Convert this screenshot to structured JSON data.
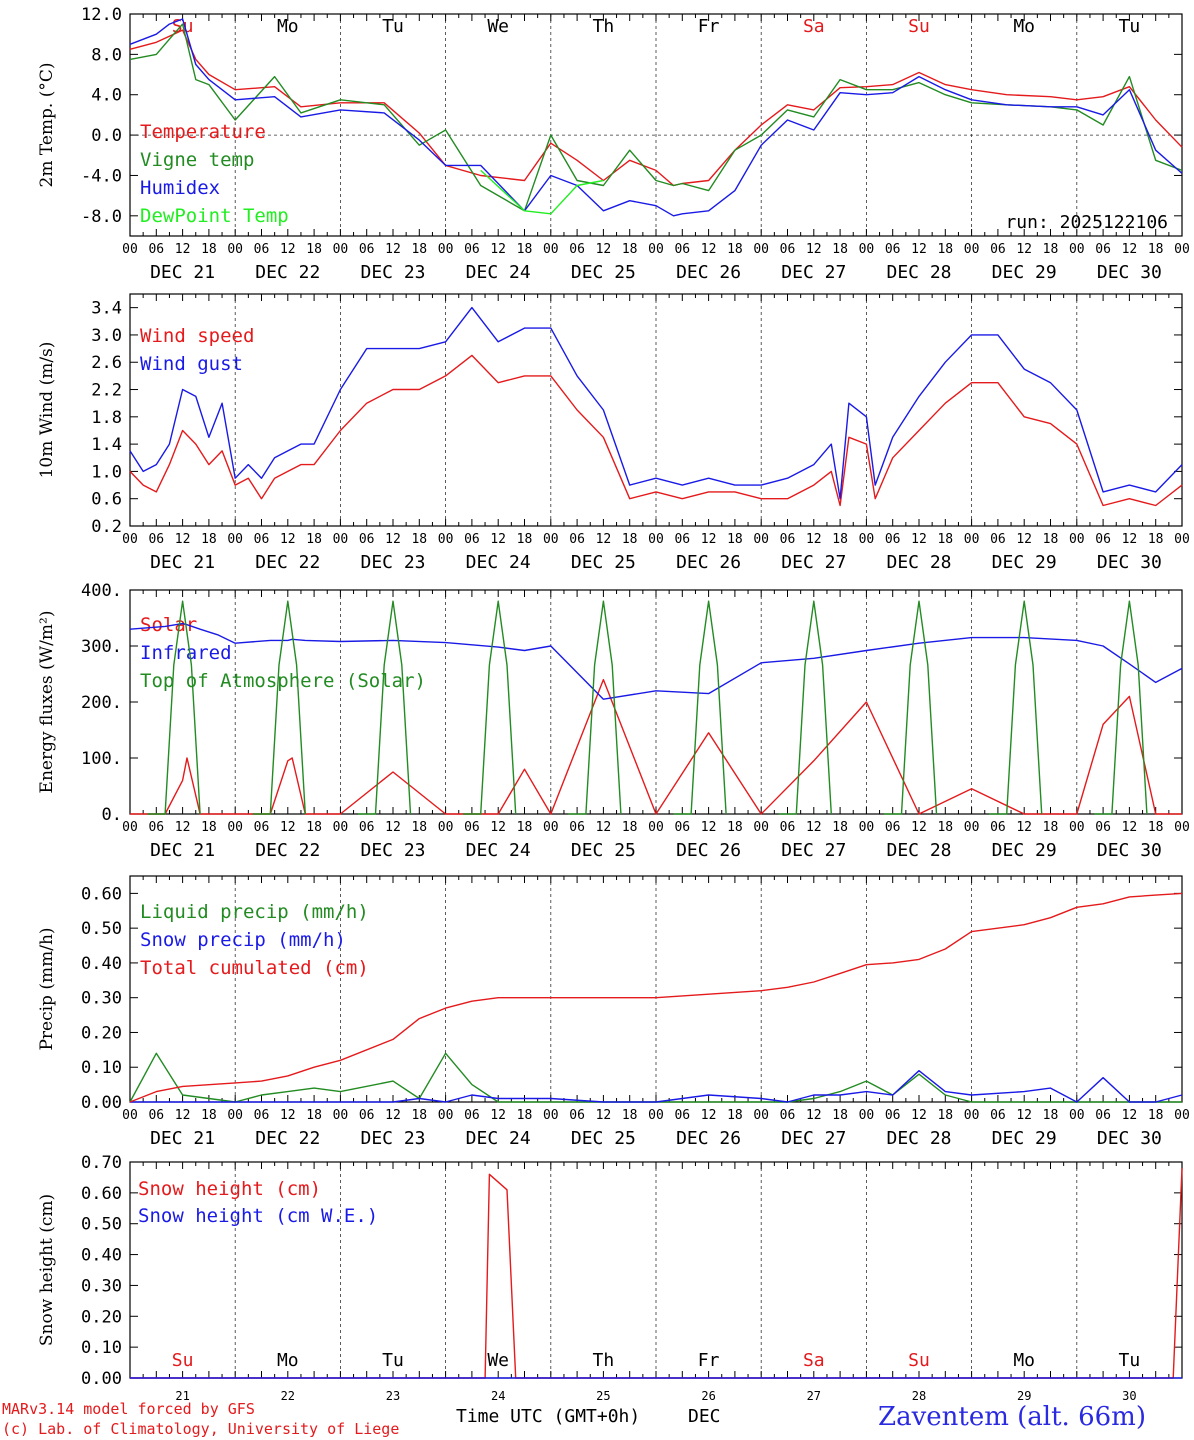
{
  "days": [
    "DEC 21",
    "DEC 22",
    "DEC 23",
    "DEC 24",
    "DEC 25",
    "DEC 26",
    "DEC 27",
    "DEC 28",
    "DEC 29",
    "DEC 30"
  ],
  "weekdays": [
    {
      "label": "Su",
      "color": "#e41a1c"
    },
    {
      "label": "Mo",
      "color": "#000000"
    },
    {
      "label": "Tu",
      "color": "#000000"
    },
    {
      "label": "We",
      "color": "#000000"
    },
    {
      "label": "Th",
      "color": "#000000"
    },
    {
      "label": "Fr",
      "color": "#000000"
    },
    {
      "label": "Sa",
      "color": "#e41a1c"
    },
    {
      "label": "Su",
      "color": "#e41a1c"
    },
    {
      "label": "Mo",
      "color": "#000000"
    },
    {
      "label": "Tu",
      "color": "#000000"
    }
  ],
  "hours": [
    "00",
    "06",
    "12",
    "18"
  ],
  "day_numbers": [
    "21",
    "22",
    "23",
    "24",
    "25",
    "26",
    "27",
    "28",
    "29",
    "30"
  ],
  "run_label": "run: 2025122106",
  "footer": {
    "model": "MARv3.14 model forced by GFS",
    "lab": "(c) Lab. of Climatology, University of Liege",
    "axis_title": "Time UTC (GMT+0h)",
    "axis_month": "DEC",
    "station": "Zaventem (alt. 66m)"
  },
  "colors": {
    "red": "#e41a1c",
    "green": "#228b22",
    "blue": "#1a1ae6",
    "lightgreen": "#22ee22"
  },
  "chart_data": [
    {
      "type": "line",
      "title": "",
      "ylabel": "2m Temp. (°C)",
      "ylim": [
        -10,
        12
      ],
      "yticks": [
        "12.0",
        "8.0",
        "4.0",
        "0.0",
        "-4.0",
        "-8.0"
      ],
      "ytick_values": [
        12,
        8,
        4,
        0,
        -4,
        -8
      ],
      "x_hours": [
        0,
        6,
        9,
        12,
        15,
        18,
        24,
        33,
        39,
        48,
        58,
        66,
        72,
        80,
        90,
        96,
        102,
        108,
        114,
        120,
        124,
        126,
        132,
        138,
        144,
        150,
        156,
        162,
        168,
        174,
        180,
        186,
        192,
        200,
        210,
        216,
        222,
        228,
        234,
        240
      ],
      "series": [
        {
          "name": "Temperature",
          "color": "#e41a1c",
          "values": [
            8.5,
            9.2,
            9.8,
            10.4,
            7.5,
            6.0,
            4.5,
            4.8,
            2.8,
            3.2,
            3.2,
            0.2,
            -3.0,
            -4.0,
            -4.5,
            -0.8,
            -2.5,
            -4.5,
            -2.5,
            -3.5,
            -5.0,
            -4.8,
            -4.5,
            -1.5,
            1.0,
            3.0,
            2.5,
            4.7,
            4.8,
            5.0,
            6.2,
            5.0,
            4.5,
            4.0,
            3.8,
            3.5,
            3.8,
            4.8,
            1.5,
            -1.2
          ]
        },
        {
          "name": "Vigne temp",
          "color": "#228b22",
          "values": [
            7.5,
            8.0,
            9.5,
            11.0,
            5.5,
            5.0,
            1.5,
            5.8,
            2.2,
            3.5,
            3.0,
            -1.0,
            0.5,
            -5.0,
            -7.5,
            0.0,
            -4.5,
            -5.0,
            -1.5,
            -4.5,
            -5.0,
            -4.8,
            -5.5,
            -1.5,
            0.0,
            2.5,
            1.8,
            5.5,
            4.5,
            4.5,
            5.2,
            4.0,
            3.2,
            3.0,
            2.8,
            2.5,
            1.0,
            5.8,
            -2.5,
            -3.5
          ]
        },
        {
          "name": "Humidex",
          "color": "#1a1ae6",
          "values": [
            9.0,
            10.0,
            11.0,
            11.5,
            7.0,
            5.5,
            3.5,
            3.8,
            1.8,
            2.5,
            2.2,
            -0.5,
            -3.0,
            -3.0,
            -7.5,
            -4.0,
            -5.0,
            -7.5,
            -6.5,
            -7.0,
            -8.0,
            -7.8,
            -7.5,
            -5.5,
            -1.0,
            1.5,
            0.5,
            4.2,
            4.0,
            4.2,
            5.8,
            4.5,
            3.5,
            3.0,
            2.8,
            2.8,
            2.0,
            4.5,
            -1.5,
            -3.8
          ]
        },
        {
          "name": "DewPoint Temp",
          "color": "#22ee22",
          "values": [
            null,
            null,
            null,
            null,
            null,
            null,
            null,
            null,
            null,
            null,
            null,
            null,
            null,
            -3.5,
            -7.5,
            -7.8,
            -5.0,
            -4.5,
            null,
            null,
            null,
            null,
            null,
            null,
            null,
            null,
            null,
            null,
            null,
            null,
            null,
            null,
            null,
            null,
            null,
            null,
            null,
            null,
            null,
            null
          ]
        }
      ]
    },
    {
      "type": "line",
      "ylabel": "10m Wind (m/s)",
      "ylim": [
        0.2,
        3.6
      ],
      "yticks": [
        "3.4",
        "3.0",
        "2.6",
        "2.2",
        "1.8",
        "1.4",
        "1.0",
        "0.6",
        "0.2"
      ],
      "ytick_values": [
        3.4,
        3.0,
        2.6,
        2.2,
        1.8,
        1.4,
        1.0,
        0.6,
        0.2
      ],
      "x_hours": [
        0,
        3,
        6,
        9,
        12,
        15,
        18,
        21,
        24,
        27,
        30,
        33,
        36,
        39,
        42,
        48,
        54,
        60,
        66,
        72,
        78,
        84,
        90,
        96,
        102,
        108,
        114,
        120,
        126,
        132,
        138,
        144,
        150,
        156,
        160,
        162,
        164,
        168,
        170,
        174,
        180,
        186,
        192,
        198,
        204,
        210,
        216,
        222,
        228,
        234,
        240
      ],
      "series": [
        {
          "name": "Wind speed",
          "color": "#e41a1c",
          "values": [
            1.0,
            0.8,
            0.7,
            1.1,
            1.6,
            1.4,
            1.1,
            1.3,
            0.8,
            0.9,
            0.6,
            0.9,
            1.0,
            1.1,
            1.1,
            1.6,
            2.0,
            2.2,
            2.2,
            2.4,
            2.7,
            2.3,
            2.4,
            2.4,
            1.9,
            1.5,
            0.6,
            0.7,
            0.6,
            0.7,
            0.7,
            0.6,
            0.6,
            0.8,
            1.0,
            0.5,
            1.5,
            1.4,
            0.6,
            1.2,
            1.6,
            2.0,
            2.3,
            2.3,
            1.8,
            1.7,
            1.4,
            0.5,
            0.6,
            0.5,
            0.8
          ]
        },
        {
          "name": "Wind gust",
          "color": "#1a1ae6",
          "values": [
            1.3,
            1.0,
            1.1,
            1.4,
            2.2,
            2.1,
            1.5,
            2.0,
            0.9,
            1.1,
            0.9,
            1.2,
            1.3,
            1.4,
            1.4,
            2.2,
            2.8,
            2.8,
            2.8,
            2.9,
            3.4,
            2.9,
            3.1,
            3.1,
            2.4,
            1.9,
            0.8,
            0.9,
            0.8,
            0.9,
            0.8,
            0.8,
            0.9,
            1.1,
            1.4,
            0.6,
            2.0,
            1.8,
            0.8,
            1.5,
            2.1,
            2.6,
            3.0,
            3.0,
            2.5,
            2.3,
            1.9,
            0.7,
            0.8,
            0.7,
            1.1
          ]
        }
      ]
    },
    {
      "type": "line",
      "ylabel": "Energy fluxes (W/m²)",
      "ylim": [
        0,
        400
      ],
      "yticks": [
        "400.",
        "300.",
        "200.",
        "100.",
        "0."
      ],
      "ytick_values": [
        400,
        300,
        200,
        100,
        0
      ],
      "x_hours": [
        0,
        8,
        12,
        13,
        16,
        20,
        24,
        32,
        36,
        37,
        40,
        48,
        60,
        72,
        84,
        90,
        96,
        108,
        120,
        132,
        144,
        156,
        168,
        180,
        192,
        204,
        216,
        222,
        228,
        234,
        240
      ],
      "series": [
        {
          "name": "Solar",
          "color": "#e41a1c",
          "values": [
            0,
            0,
            60,
            100,
            0,
            0,
            0,
            0,
            95,
            100,
            0,
            0,
            75,
            0,
            0,
            80,
            0,
            240,
            0,
            145,
            0,
            95,
            200,
            0,
            45,
            0,
            0,
            160,
            210,
            0,
            0
          ]
        },
        {
          "name": "Infrared",
          "color": "#1a1ae6",
          "values": [
            330,
            335,
            340,
            338,
            330,
            320,
            305,
            310,
            310,
            312,
            310,
            308,
            310,
            306,
            298,
            292,
            300,
            205,
            220,
            215,
            270,
            278,
            292,
            305,
            315,
            315,
            310,
            300,
            268,
            235,
            260
          ]
        },
        {
          "name": "Top of Atmosphere (Solar)",
          "color": "#228b22",
          "peak_value": 380,
          "peak_hours": [
            12,
            36,
            60,
            84,
            108,
            132,
            156,
            180,
            204,
            228
          ]
        }
      ]
    },
    {
      "type": "line",
      "ylabel": "Precip (mm/h)",
      "ylim": [
        0,
        0.65
      ],
      "yticks": [
        "0.60",
        "0.50",
        "0.40",
        "0.30",
        "0.20",
        "0.10",
        "0.00"
      ],
      "ytick_values": [
        0.6,
        0.5,
        0.4,
        0.3,
        0.2,
        0.1,
        0.0
      ],
      "x_hours": [
        0,
        6,
        12,
        24,
        30,
        36,
        42,
        48,
        60,
        66,
        72,
        78,
        84,
        96,
        108,
        120,
        132,
        144,
        150,
        156,
        162,
        168,
        174,
        180,
        186,
        192,
        204,
        210,
        216,
        222,
        228,
        234,
        240
      ],
      "series": [
        {
          "name": "Liquid precip (mm/h)",
          "color": "#228b22",
          "values": [
            0.0,
            0.14,
            0.02,
            0.0,
            0.02,
            0.03,
            0.04,
            0.03,
            0.06,
            0.01,
            0.14,
            0.05,
            0.0,
            0.0,
            0.0,
            0.0,
            0.0,
            0.0,
            0.0,
            0.01,
            0.03,
            0.06,
            0.02,
            0.08,
            0.02,
            0.0,
            0.0,
            0.0,
            0.0,
            0.0,
            0.0,
            0.0,
            0.0
          ]
        },
        {
          "name": "Snow precip (mm/h)",
          "color": "#1a1ae6",
          "values": [
            0.0,
            0.0,
            0.0,
            0.0,
            0.0,
            0.0,
            0.0,
            0.0,
            0.0,
            0.01,
            0.0,
            0.02,
            0.01,
            0.01,
            0.0,
            0.0,
            0.02,
            0.01,
            0.0,
            0.02,
            0.02,
            0.03,
            0.02,
            0.09,
            0.03,
            0.02,
            0.03,
            0.04,
            0.0,
            0.07,
            0.0,
            0.0,
            0.02
          ]
        },
        {
          "name": "Total cumulated (cm)",
          "color": "#e41a1c",
          "values": [
            0.0,
            0.03,
            0.045,
            0.055,
            0.06,
            0.075,
            0.1,
            0.12,
            0.18,
            0.24,
            0.27,
            0.29,
            0.3,
            0.3,
            0.3,
            0.3,
            0.31,
            0.32,
            0.33,
            0.345,
            0.37,
            0.395,
            0.4,
            0.41,
            0.44,
            0.49,
            0.51,
            0.53,
            0.56,
            0.57,
            0.59,
            0.595,
            0.6
          ]
        }
      ]
    },
    {
      "type": "line",
      "ylabel": "Snow height (cm)",
      "ylim": [
        0,
        0.7
      ],
      "yticks": [
        "0.70",
        "0.60",
        "0.50",
        "0.40",
        "0.30",
        "0.20",
        "0.10",
        "0.00"
      ],
      "ytick_values": [
        0.7,
        0.6,
        0.5,
        0.4,
        0.3,
        0.2,
        0.1,
        0.0
      ],
      "x_hours": [
        0,
        81,
        82,
        86,
        88,
        238,
        240
      ],
      "series": [
        {
          "name": "Snow height (cm)",
          "color": "#e41a1c",
          "values": [
            0,
            0,
            0.66,
            0.61,
            0,
            0,
            0.68
          ]
        },
        {
          "name": "Snow height (cm W.E.)",
          "color": "#1a1ae6",
          "values": [
            0,
            0,
            0,
            0,
            0,
            0,
            0
          ]
        }
      ]
    }
  ]
}
